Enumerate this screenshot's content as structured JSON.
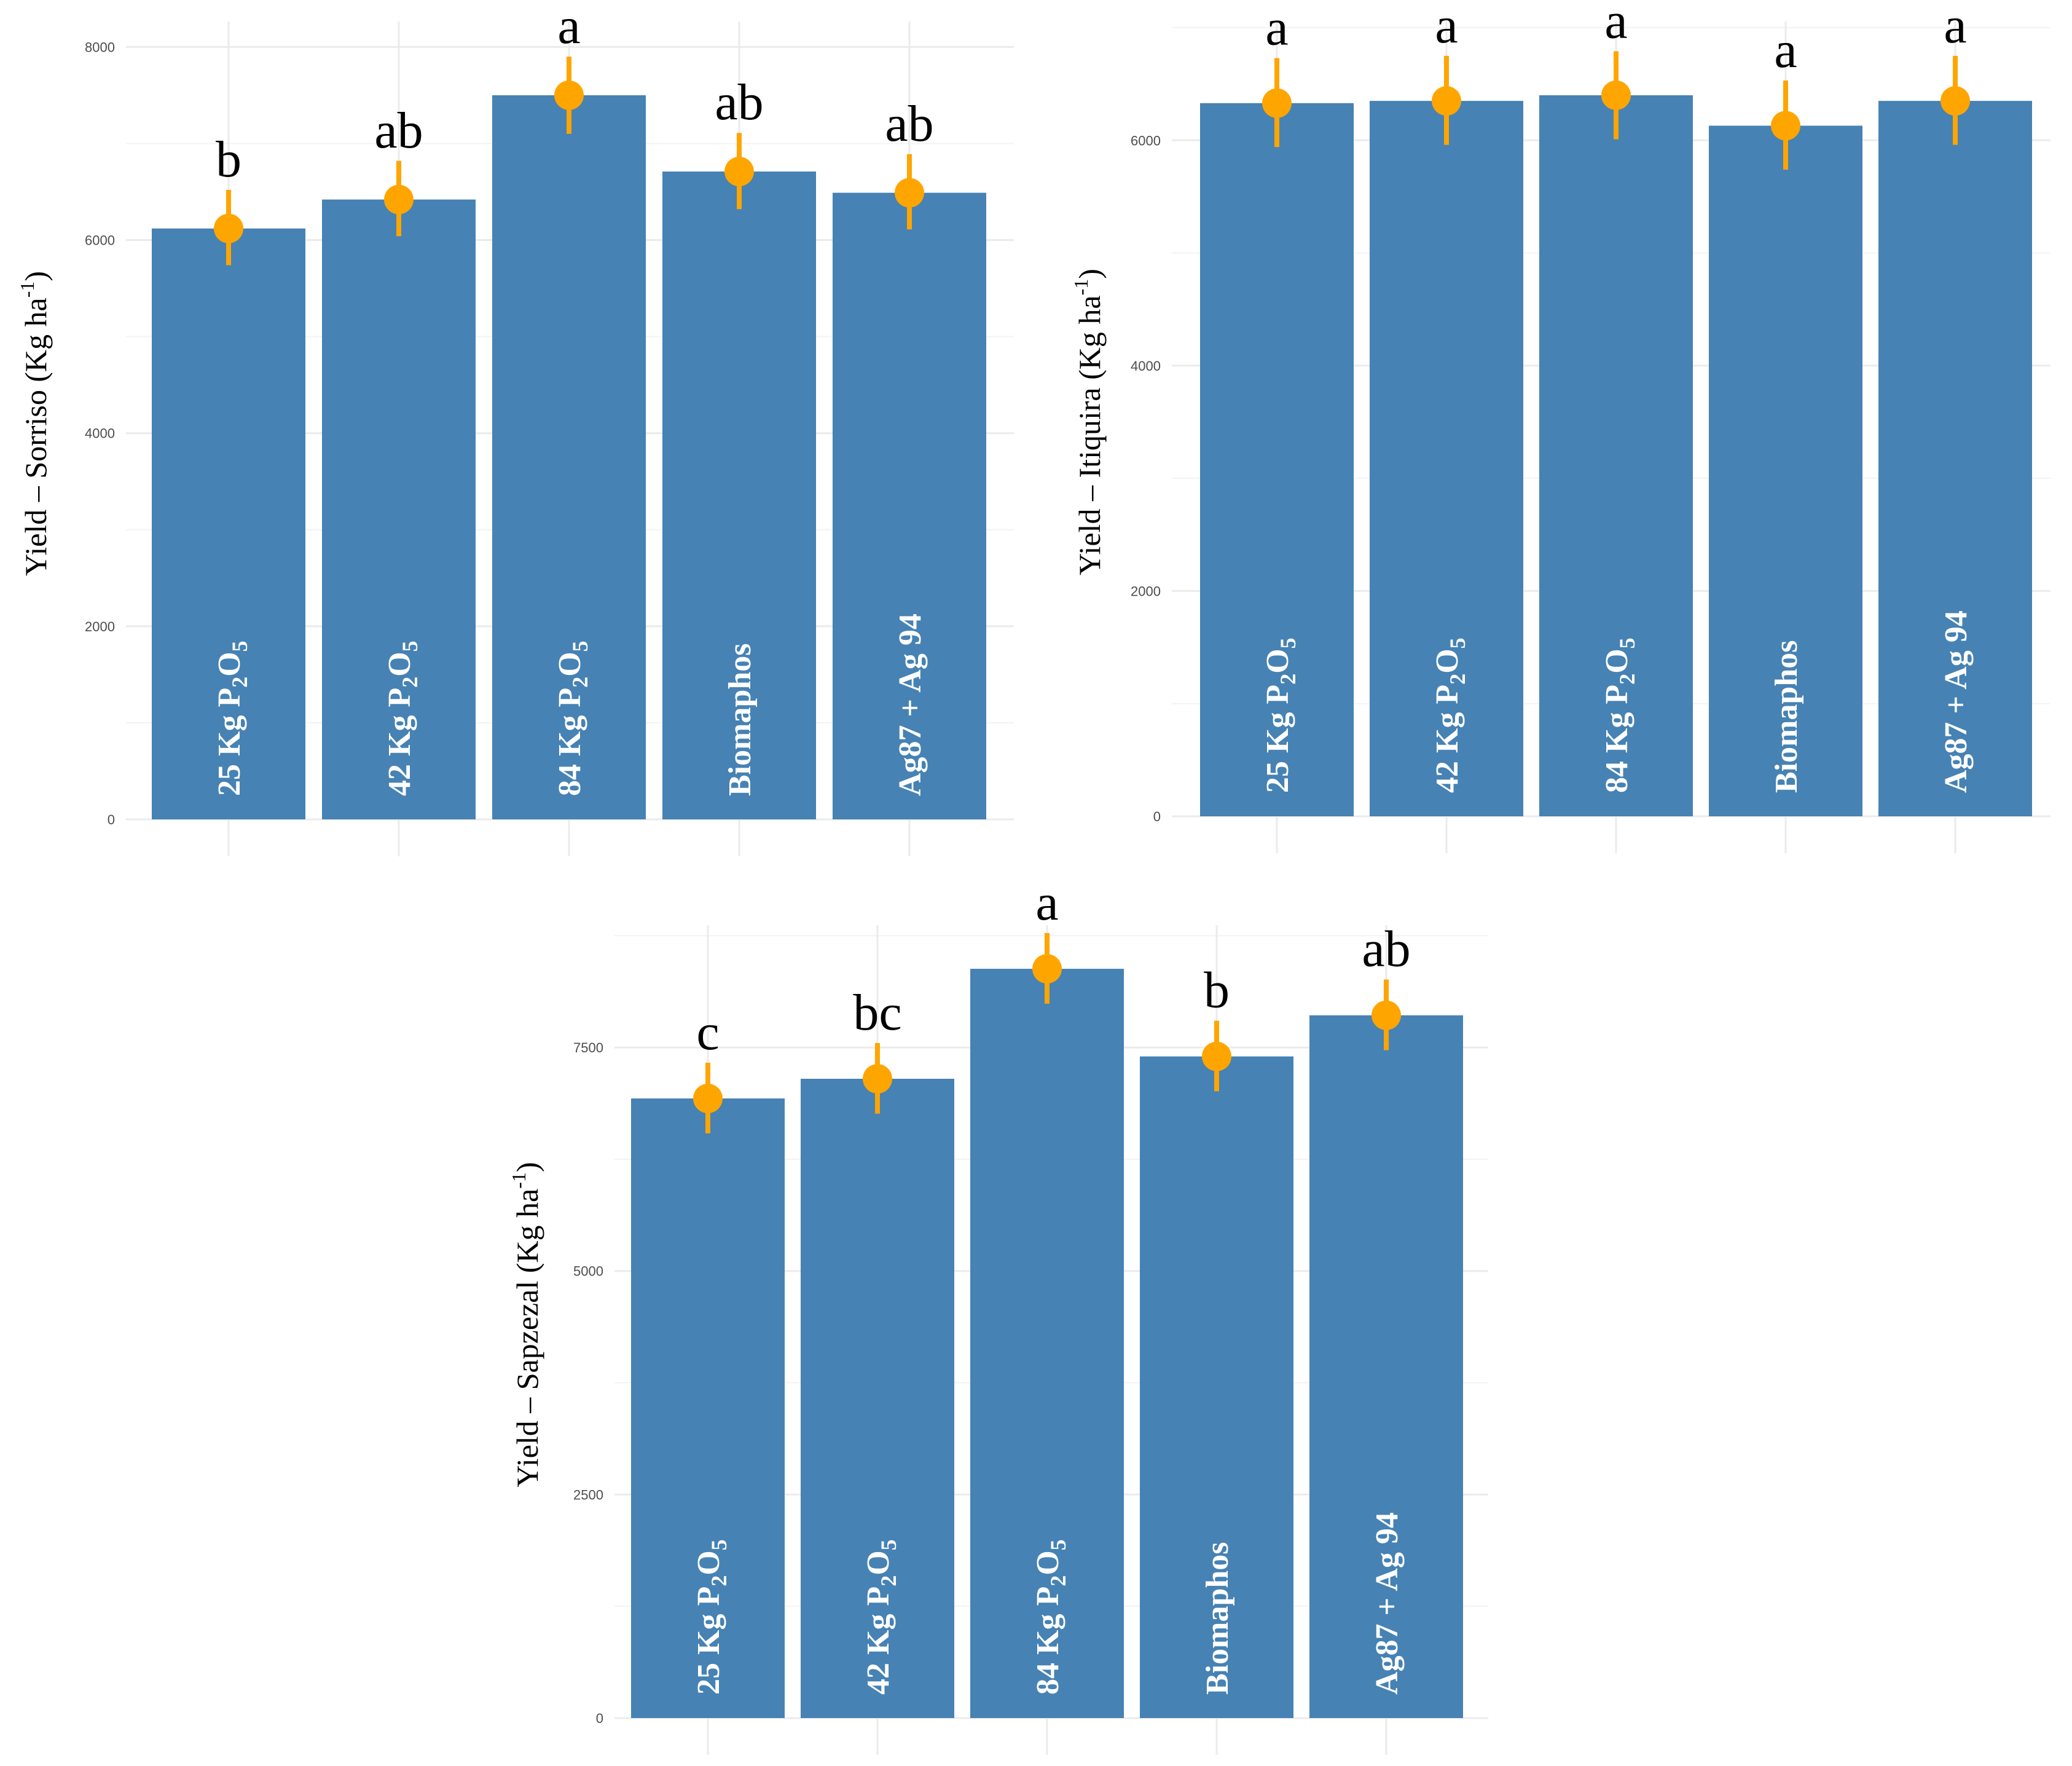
{
  "chart_data": [
    {
      "type": "bar",
      "categories": [
        "25 Kg P2O5",
        "42 Kg P2O5",
        "84 Kg P2O5",
        "Biomaphos",
        "Ag87 + Ag 94"
      ],
      "category_labels": [
        {
          "text": "25 Kg P",
          "sub1": "2",
          "mid": "O",
          "sub2": "5"
        },
        {
          "text": "42 Kg P",
          "sub1": "2",
          "mid": "O",
          "sub2": "5"
        },
        {
          "text": "84 Kg P",
          "sub1": "2",
          "mid": "O",
          "sub2": "5"
        },
        {
          "text": "Biomaphos"
        },
        {
          "text": "Ag87 + Ag 94"
        }
      ],
      "values": [
        6120,
        6420,
        7500,
        6710,
        6490
      ],
      "error_low": [
        5740,
        6040,
        7100,
        6320,
        6110
      ],
      "error_high": [
        6520,
        6820,
        7900,
        7110,
        6890
      ],
      "letters": [
        "b",
        "ab",
        "a",
        "ab",
        "ab"
      ],
      "ylabel": "Yield – Sorriso (Kg ha",
      "ylabel_sup": "-1",
      "ylabel_end": ")",
      "ylim": [
        0,
        8200
      ],
      "yticks": [
        0,
        2000,
        4000,
        6000,
        8000
      ],
      "ytick_labels": [
        "0",
        "2000",
        "4000",
        "6000",
        "8000"
      ],
      "grid": true
    },
    {
      "type": "bar",
      "categories": [
        "25 Kg P2O5",
        "42 Kg P2O5",
        "84 Kg P2O5",
        "Biomaphos",
        "Ag87 + Ag 94"
      ],
      "category_labels": [
        {
          "text": "25 Kg P",
          "sub1": "2",
          "mid": "O",
          "sub2": "5"
        },
        {
          "text": "42 Kg P",
          "sub1": "2",
          "mid": "O",
          "sub2": "5"
        },
        {
          "text": "84 Kg P",
          "sub1": "2",
          "mid": "O",
          "sub2": "5"
        },
        {
          "text": "Biomaphos"
        },
        {
          "text": "Ag87 + Ag 94"
        }
      ],
      "values": [
        6330,
        6350,
        6400,
        6130,
        6350
      ],
      "error_low": [
        5940,
        5960,
        6010,
        5740,
        5960
      ],
      "error_high": [
        6730,
        6750,
        6790,
        6530,
        6750
      ],
      "letters": [
        "a",
        "a",
        "a",
        "a",
        "a"
      ],
      "ylabel": "Yield – Itiquira (Kg ha",
      "ylabel_sup": "-1",
      "ylabel_end": ")",
      "ylim": [
        0,
        7000
      ],
      "yticks": [
        0,
        2000,
        4000,
        6000
      ],
      "ytick_labels": [
        "0",
        "2000",
        "4000",
        "6000"
      ],
      "grid": true
    },
    {
      "type": "bar",
      "categories": [
        "25 Kg P2O5",
        "42 Kg P2O5",
        "84 Kg P2O5",
        "Biomaphos",
        "Ag87 + Ag 94"
      ],
      "category_labels": [
        {
          "text": "25 Kg P",
          "sub1": "2",
          "mid": "O",
          "sub2": "5"
        },
        {
          "text": "42 Kg P",
          "sub1": "2",
          "mid": "O",
          "sub2": "5"
        },
        {
          "text": "84 Kg P",
          "sub1": "2",
          "mid": "O",
          "sub2": "5"
        },
        {
          "text": "Biomaphos"
        },
        {
          "text": "Ag87 + Ag 94"
        }
      ],
      "values": [
        6930,
        7150,
        8380,
        7400,
        7860
      ],
      "error_low": [
        6540,
        6760,
        7990,
        7010,
        7470
      ],
      "error_high": [
        7330,
        7550,
        8780,
        7800,
        8260
      ],
      "letters": [
        "c",
        "bc",
        "a",
        "b",
        "ab"
      ],
      "ylabel": "Yield – Sapzezal (Kg ha",
      "ylabel_sup": "-1",
      "ylabel_end": ")",
      "ylim": [
        0,
        8800
      ],
      "yticks": [
        0,
        2500,
        5000,
        7500
      ],
      "ytick_labels": [
        "0",
        "2500",
        "5000",
        "7500"
      ],
      "grid": true
    }
  ],
  "colors": {
    "bar": "#4682b4",
    "point": "#ffa500",
    "grid": "#ebebeb",
    "bar_text": "#ffffff",
    "letter": "#000000"
  }
}
